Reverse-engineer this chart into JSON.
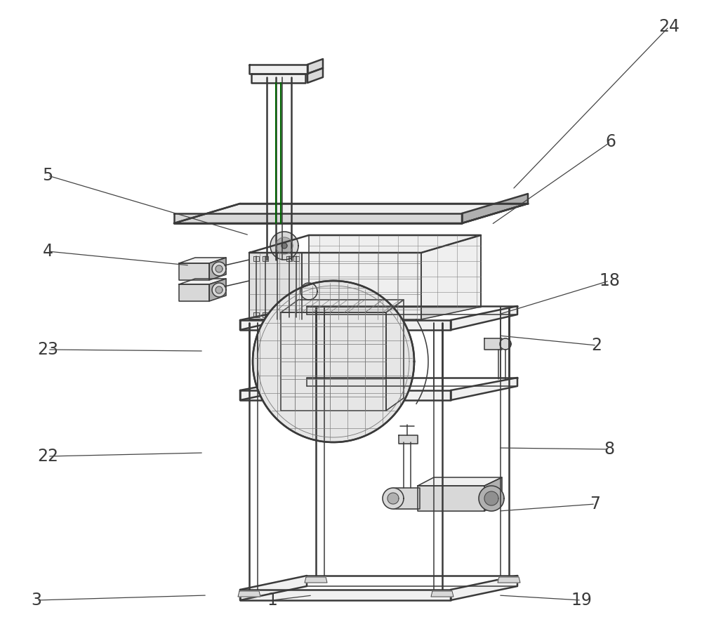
{
  "bg_color": "#ffffff",
  "lc": "#3a3a3a",
  "lc2": "#777777",
  "lc_green": "#006600",
  "fill_light": "#f0f0f0",
  "fill_mid": "#d8d8d8",
  "fill_dark": "#b0b0b0",
  "fill_darker": "#909090",
  "lw_thick": 1.8,
  "lw_main": 1.1,
  "lw_thin": 0.6,
  "lw_grid": 0.45,
  "fs_label": 17,
  "annotations": [
    [
      "24",
      953,
      38,
      730,
      270
    ],
    [
      "6",
      870,
      202,
      700,
      320
    ],
    [
      "5",
      68,
      250,
      355,
      335
    ],
    [
      "4",
      68,
      358,
      270,
      378
    ],
    [
      "18",
      868,
      400,
      710,
      448
    ],
    [
      "23",
      68,
      498,
      290,
      500
    ],
    [
      "2",
      850,
      492,
      710,
      478
    ],
    [
      "22",
      68,
      650,
      290,
      645
    ],
    [
      "8",
      868,
      640,
      710,
      638
    ],
    [
      "7",
      848,
      718,
      710,
      728
    ],
    [
      "3",
      52,
      855,
      295,
      848
    ],
    [
      "1",
      388,
      855,
      445,
      848
    ],
    [
      "19",
      828,
      855,
      710,
      848
    ]
  ]
}
